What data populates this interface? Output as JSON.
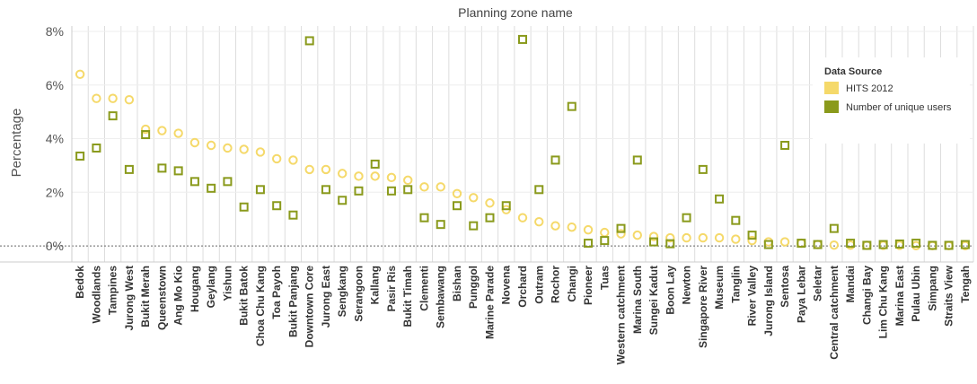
{
  "chart_data": {
    "type": "scatter",
    "title": "Planning zone name",
    "ylabel": "Percentage",
    "ylim": [
      -0.006,
      0.082
    ],
    "yticks": [
      0,
      0.02,
      0.04,
      0.06,
      0.08
    ],
    "yticklabels": [
      "0%",
      "2%",
      "4%",
      "6%",
      "8%"
    ],
    "categories": [
      "Bedok",
      "Woodlands",
      "Tampines",
      "Jurong West",
      "Bukit Merah",
      "Queenstown",
      "Ang Mo Kio",
      "Hougang",
      "Geylang",
      "Yishun",
      "Bukit Batok",
      "Choa Chu Kang",
      "Toa Payoh",
      "Bukit Panjang",
      "Downtown Core",
      "Jurong East",
      "Sengkang",
      "Serangoon",
      "Kallang",
      "Pasir Ris",
      "Bukit Timah",
      "Clementi",
      "Sembawang",
      "Bishan",
      "Punggol",
      "Marine Parade",
      "Novena",
      "Orchard",
      "Outram",
      "Rochor",
      "Changi",
      "Pioneer",
      "Tuas",
      "Western catchment",
      "Marina South",
      "Sungei Kadut",
      "Boon Lay",
      "Newton",
      "Singapore River",
      "Museum",
      "Tanglin",
      "River Valley",
      "Jurong Island",
      "Sentosa",
      "Paya Lebar",
      "Seletar",
      "Central catchment",
      "Mandai",
      "Changi Bay",
      "Lim Chu Kang",
      "Marina East",
      "Pulau Ubin",
      "Simpang",
      "Straits View",
      "Tengah"
    ],
    "legend": {
      "title": "Data Source",
      "position": "top-right"
    },
    "series": [
      {
        "name": "HITS 2012",
        "marker": "circle",
        "color": "#f5d96a",
        "values": [
          0.064,
          0.055,
          0.055,
          0.0545,
          0.0435,
          0.043,
          0.042,
          0.0385,
          0.0375,
          0.0365,
          0.036,
          0.035,
          0.0325,
          0.032,
          0.0285,
          0.0285,
          0.027,
          0.026,
          0.026,
          0.0255,
          0.0245,
          0.022,
          0.022,
          0.0195,
          0.018,
          0.016,
          0.0135,
          0.0105,
          0.009,
          0.0075,
          0.007,
          0.006,
          0.005,
          0.0045,
          0.004,
          0.0035,
          0.003,
          0.003,
          0.003,
          0.003,
          0.0025,
          0.002,
          0.0015,
          0.0015,
          0.001,
          0.0005,
          0.0003,
          0.0003,
          0.0002,
          0.0002,
          0.0002,
          0.0001,
          0.0001,
          0.0001,
          0.0001
        ]
      },
      {
        "name": "Number of unique users",
        "marker": "square",
        "color": "#8a9a1c",
        "values": [
          0.0335,
          0.0365,
          0.0485,
          0.0285,
          0.0415,
          0.029,
          0.028,
          0.024,
          0.0215,
          0.024,
          0.0145,
          0.021,
          0.015,
          0.0115,
          0.0765,
          0.021,
          0.017,
          0.0205,
          0.0305,
          0.0205,
          0.021,
          0.0105,
          0.008,
          0.015,
          0.0075,
          0.0105,
          0.015,
          0.077,
          0.021,
          0.032,
          0.052,
          0.001,
          0.002,
          0.0065,
          0.032,
          0.0015,
          0.0008,
          0.0105,
          0.0285,
          0.0175,
          0.0095,
          0.004,
          0.0005,
          0.0375,
          0.001,
          0.0005,
          0.0065,
          0.001,
          0.0002,
          0.0005,
          0.0007,
          0.001,
          0.0002,
          0.0002,
          0.0005
        ]
      }
    ]
  }
}
